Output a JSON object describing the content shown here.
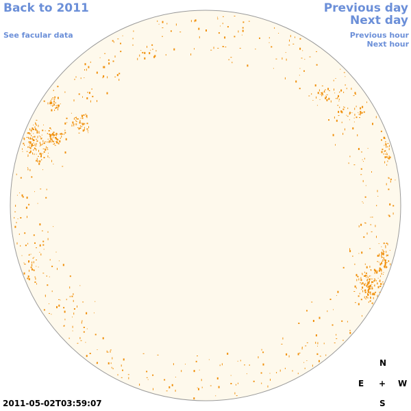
{
  "nav": {
    "back_label": "Back to 2011",
    "facular_label": "See facular data",
    "prev_day_label": "Previous day",
    "next_day_label": "Next day",
    "prev_hour_label": "Previous hour",
    "next_hour_label": "Next hour"
  },
  "timestamp": "2011-05-02T03:59:07",
  "compass": {
    "north": "N",
    "east": "E",
    "center": "+",
    "west": "W",
    "south": "S"
  },
  "colors": {
    "disk_fill": "#fef9ec",
    "disk_edge": "#999999",
    "facula": "#f0900c",
    "link": "#6b8fd8"
  },
  "image_seed": 20110502
}
